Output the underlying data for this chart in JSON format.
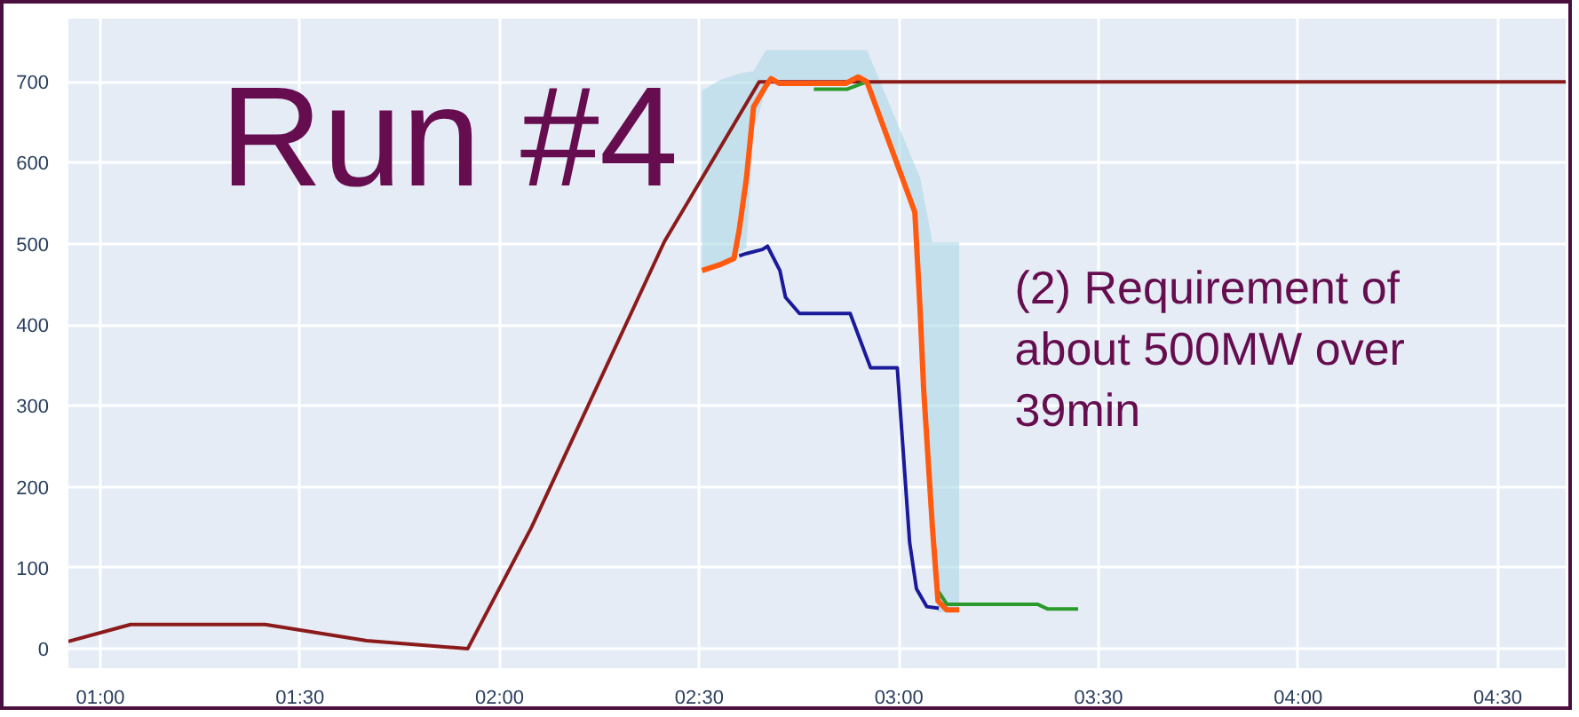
{
  "chart_data": {
    "type": "line",
    "annotations": [
      "Run #4",
      "(2) Requirement of\nabout 500MW over\n39min"
    ],
    "xlim": [
      0.92,
      4.67
    ],
    "ylim": [
      -24,
      778
    ],
    "xticks": [
      {
        "value": 1,
        "label": "01:00"
      },
      {
        "value": 1.5,
        "label": "01:30"
      },
      {
        "value": 2,
        "label": "02:00"
      },
      {
        "value": 2.5,
        "label": "02:30"
      },
      {
        "value": 3,
        "label": "03:00"
      },
      {
        "value": 3.5,
        "label": "03:30"
      },
      {
        "value": 4,
        "label": "04:00"
      },
      {
        "value": 4.5,
        "label": "04:30"
      }
    ],
    "yticks": [
      0,
      100,
      200,
      300,
      400,
      500,
      600,
      700
    ],
    "grid": true,
    "line_style": "solid",
    "marker": "none",
    "series": [
      {
        "color": "#8b1a1a",
        "x": [
          0.92,
          1.076,
          1.413,
          1.667,
          1.92,
          2.08,
          2.413,
          2.65,
          4.67
        ],
        "values": [
          9,
          30,
          30,
          10,
          0,
          150,
          503,
          700,
          700
        ]
      },
      {
        "color": "#2a9a2a",
        "x": [
          2.787,
          2.871,
          2.92,
          3.04,
          3.062,
          3.1,
          3.12,
          3.151,
          3.347,
          3.373,
          3.449
        ],
        "values": [
          691,
          691,
          700,
          null,
          null,
          70,
          55,
          55,
          55,
          49,
          49
        ]
      },
      {
        "color": "#1a1a9a",
        "x": [
          2.6,
          2.618,
          2.658,
          2.671,
          2.702,
          2.716,
          2.751,
          2.878,
          2.929,
          2.996,
          3.027,
          3.044,
          3.07,
          3.1
        ],
        "values": [
          485,
          488,
          493,
          497,
          467,
          434,
          414,
          414,
          347,
          347,
          131,
          74,
          52,
          50
        ]
      },
      {
        "color": "#ff5a0f",
        "x": [
          2.507,
          2.551,
          2.587,
          2.6,
          2.618,
          2.636,
          2.667,
          2.68,
          2.7,
          2.867,
          2.898,
          2.92,
          3.04,
          3.053,
          3.062,
          3.084,
          3.098,
          3.12,
          3.151
        ],
        "values": [
          467,
          474,
          482,
          517,
          580,
          669,
          695,
          704,
          698,
          698,
          706,
          700,
          539,
          420,
          321,
          150,
          59,
          48,
          48
        ],
        "lower": [
          467,
          474,
          482,
          490,
          495,
          640,
          690,
          700,
          698,
          698,
          700,
          700,
          530,
          400,
          300,
          100,
          45,
          45,
          45
        ],
        "upper": [
          689,
          702,
          708,
          710,
          712,
          713,
          739,
          739,
          739,
          739,
          739,
          739,
          597,
          582,
          559,
          502,
          502,
          502,
          502
        ]
      }
    ]
  }
}
